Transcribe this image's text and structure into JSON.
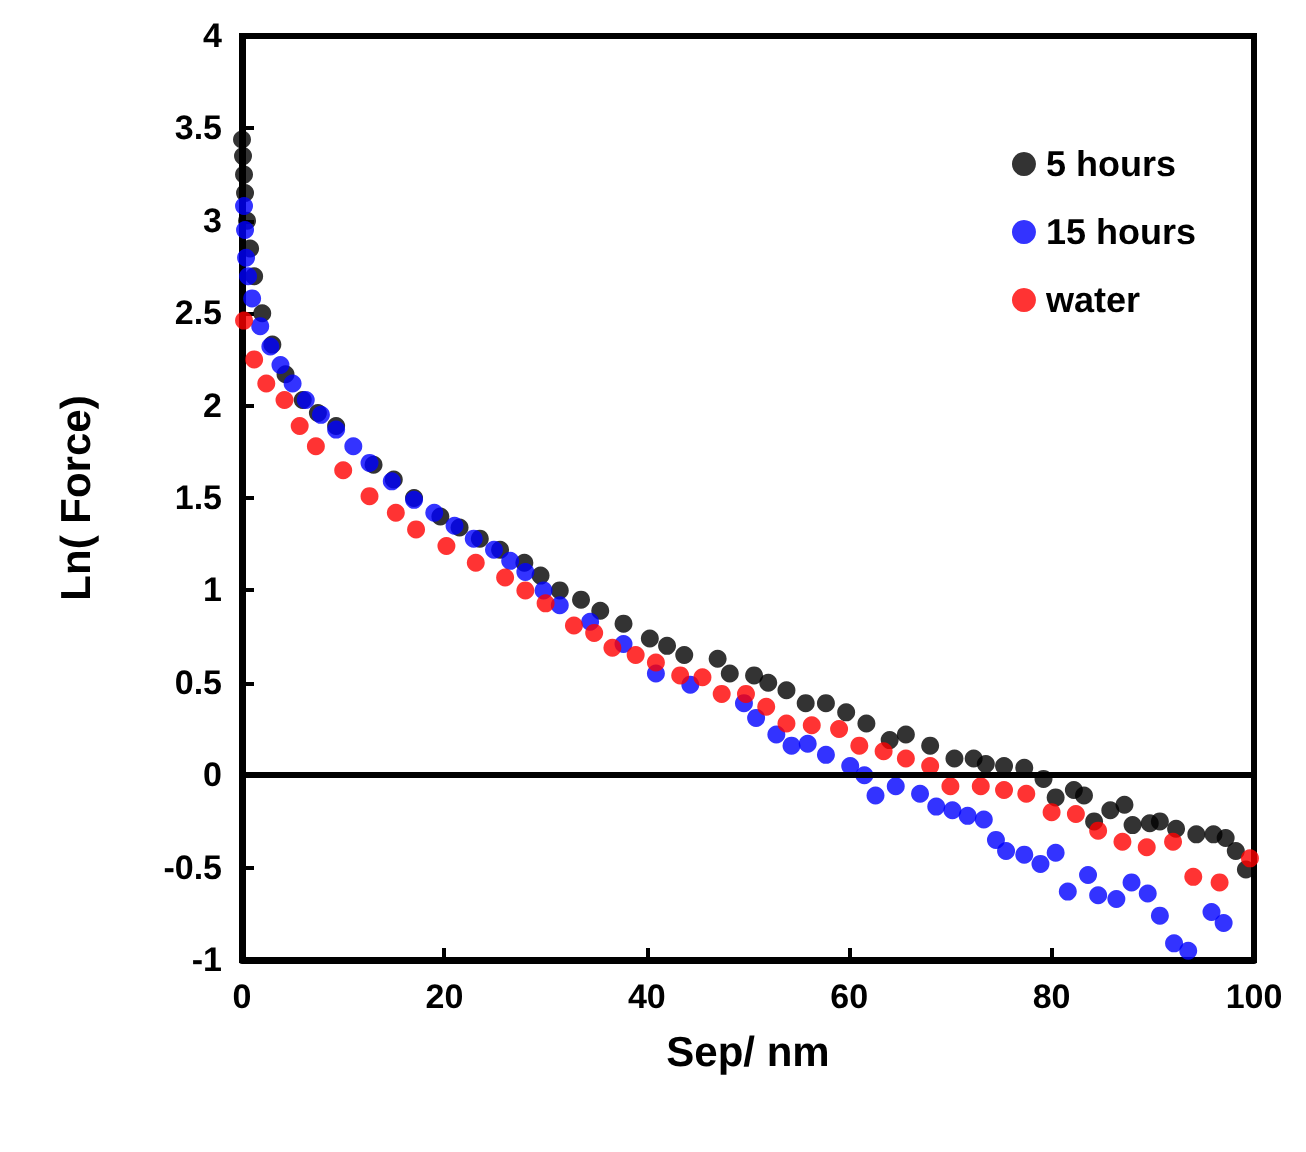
{
  "chart_data": {
    "type": "scatter",
    "xlabel": "Sep/ nm",
    "ylabel": "Ln( Force)",
    "xlim": [
      0,
      100
    ],
    "xticks": [
      0,
      20,
      40,
      60,
      80,
      100
    ],
    "ylim": [
      -1,
      4
    ],
    "yticks": [
      -1,
      -0.5,
      0,
      0.5,
      1,
      1.5,
      2,
      2.5,
      3,
      3.5,
      4
    ],
    "grid": false,
    "legend": "top right",
    "marker": "circle",
    "ref_lines": [
      {
        "axis": "y",
        "value": 0,
        "color": "#000000"
      }
    ],
    "series": [
      {
        "name": "5 hours",
        "color": "#000000",
        "x": [
          0,
          0.1,
          0.2,
          0.3,
          0.5,
          0.8,
          1.2,
          2,
          3,
          4.3,
          6,
          7.5,
          9.3,
          11,
          13,
          15,
          17,
          19.6,
          21.5,
          23.5,
          25.5,
          27.9,
          29.5,
          31.4,
          33.5,
          35.4,
          37.7,
          40.3,
          42,
          43.7,
          47,
          48.2,
          50.6,
          52,
          53.8,
          55.7,
          57.7,
          59.7,
          61.7,
          64,
          65.6,
          68,
          70.4,
          72.3,
          73.5,
          75.3,
          77.3,
          79.2,
          80.4,
          82.2,
          83.2,
          84.2,
          85.8,
          87.2,
          88,
          89.7,
          90.7,
          92.3,
          94.3,
          96,
          97.2,
          98.2,
          99.2
        ],
        "values": [
          3.44,
          3.35,
          3.25,
          3.15,
          3.0,
          2.85,
          2.7,
          2.5,
          2.33,
          2.17,
          2.03,
          1.96,
          1.89,
          null,
          1.68,
          1.6,
          1.5,
          1.4,
          1.34,
          1.28,
          1.22,
          1.15,
          1.08,
          1.0,
          0.95,
          0.89,
          0.82,
          0.74,
          0.7,
          0.65,
          0.63,
          0.55,
          0.54,
          0.5,
          0.46,
          0.39,
          0.39,
          0.34,
          0.28,
          0.19,
          0.22,
          0.16,
          0.09,
          0.09,
          0.06,
          0.05,
          0.04,
          -0.02,
          -0.12,
          -0.08,
          -0.11,
          -0.25,
          -0.19,
          -0.16,
          -0.27,
          -0.26,
          -0.25,
          -0.29,
          -0.32,
          -0.32,
          -0.34,
          -0.41,
          -0.51
        ]
      },
      {
        "name": "15 hours",
        "color": "#0000ff",
        "x": [
          0.2,
          0.3,
          0.4,
          0.6,
          1,
          1.8,
          2.8,
          3.8,
          5,
          6.3,
          7.8,
          9.3,
          11,
          12.6,
          14.8,
          17,
          19,
          21,
          22.9,
          24.9,
          26.5,
          28,
          29.8,
          31.4,
          34.4,
          37.7,
          40.9,
          44.3,
          47.2,
          49.6,
          50.8,
          52.8,
          54.3,
          55.9,
          57.7,
          60.1,
          61.5,
          62.6,
          64.6,
          67,
          68.6,
          70.2,
          71.7,
          73.3,
          74.5,
          75.5,
          77.3,
          78.9,
          80.4,
          81.6,
          83.6,
          84.6,
          86.4,
          87.9,
          89.5,
          90.7,
          92.1,
          93.5,
          95.8,
          97
        ],
        "values": [
          3.08,
          2.95,
          2.8,
          2.7,
          2.58,
          2.43,
          2.32,
          2.22,
          2.12,
          2.03,
          1.95,
          1.87,
          1.78,
          1.69,
          1.59,
          1.49,
          1.42,
          1.35,
          1.28,
          1.22,
          1.16,
          1.1,
          1.0,
          0.92,
          0.83,
          0.71,
          0.55,
          0.49,
          null,
          0.39,
          0.31,
          0.22,
          0.16,
          0.17,
          0.11,
          0.05,
          0,
          -0.11,
          -0.06,
          -0.1,
          -0.17,
          -0.19,
          -0.22,
          -0.24,
          -0.35,
          -0.41,
          -0.43,
          -0.48,
          -0.42,
          -0.63,
          -0.54,
          -0.65,
          -0.67,
          -0.58,
          -0.64,
          -0.76,
          -0.91,
          -0.95,
          -0.74,
          -0.8
        ]
      },
      {
        "name": "water",
        "color": "#ff0000",
        "x": [
          0.2,
          1.2,
          2.4,
          4.2,
          5.7,
          7.3,
          10,
          12.6,
          15.2,
          17.2,
          20.2,
          23.1,
          26,
          28,
          30,
          32.8,
          34.8,
          36.6,
          38.9,
          40.9,
          43.3,
          45.5,
          47.4,
          49.8,
          51.8,
          53.8,
          56.3,
          59,
          61,
          63.4,
          65.6,
          68,
          70,
          73,
          75.3,
          77.5,
          80,
          82.4,
          84.6,
          87,
          89.4,
          92,
          94,
          96.6,
          99.6
        ],
        "values": [
          2.46,
          2.25,
          2.12,
          2.03,
          1.89,
          1.78,
          1.65,
          1.51,
          1.42,
          1.33,
          1.24,
          1.15,
          1.07,
          1.0,
          0.93,
          0.81,
          0.77,
          0.69,
          0.65,
          0.61,
          0.54,
          0.53,
          0.44,
          0.44,
          0.37,
          0.28,
          0.27,
          0.25,
          0.16,
          0.13,
          0.09,
          0.05,
          -0.06,
          -0.06,
          -0.08,
          -0.1,
          -0.2,
          -0.21,
          -0.3,
          -0.36,
          -0.39,
          -0.36,
          -0.55,
          -0.58,
          -0.45
        ]
      }
    ]
  }
}
